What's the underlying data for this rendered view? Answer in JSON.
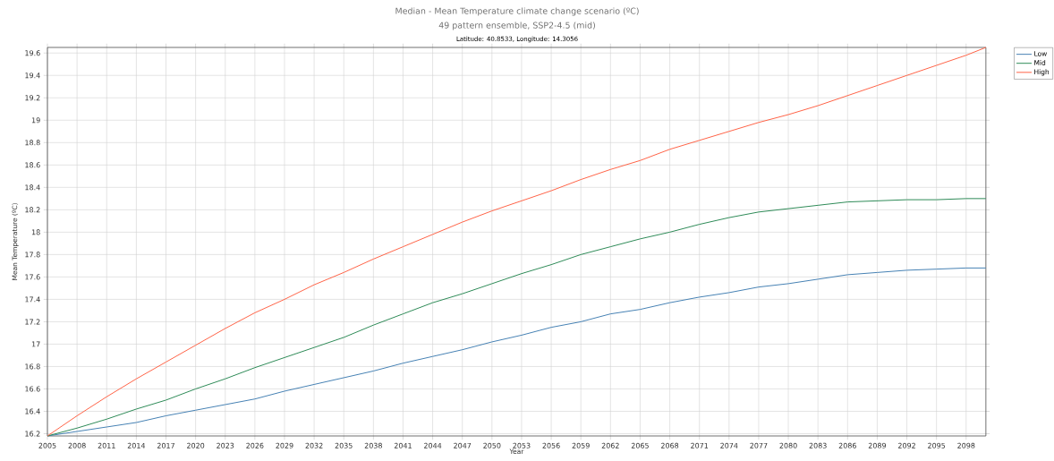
{
  "chart_data": {
    "type": "line",
    "title": "Median - Mean Temperature climate change scenario (ºC)",
    "subtitle": "49 pattern ensemble, SSP2-4.5 (mid)",
    "annotations": [
      "Latitude:  40.8533, Longitude:  14.3056"
    ],
    "xlabel": "Year",
    "ylabel": "Mean Temperature (ºC)",
    "x": [
      2005,
      2008,
      2011,
      2014,
      2017,
      2020,
      2023,
      2026,
      2029,
      2032,
      2035,
      2038,
      2041,
      2044,
      2047,
      2050,
      2053,
      2056,
      2059,
      2062,
      2065,
      2068,
      2071,
      2074,
      2077,
      2080,
      2083,
      2086,
      2089,
      2092,
      2095,
      2098,
      2100
    ],
    "series": [
      {
        "name": "Low",
        "color": "#4682b4",
        "values": [
          16.18,
          16.22,
          16.26,
          16.3,
          16.36,
          16.41,
          16.46,
          16.51,
          16.58,
          16.64,
          16.7,
          16.76,
          16.83,
          16.89,
          16.95,
          17.02,
          17.08,
          17.15,
          17.2,
          17.27,
          17.31,
          17.37,
          17.42,
          17.46,
          17.51,
          17.54,
          17.58,
          17.62,
          17.64,
          17.66,
          17.67,
          17.68,
          17.68
        ]
      },
      {
        "name": "Mid",
        "color": "#2e8b57",
        "values": [
          16.18,
          16.25,
          16.33,
          16.42,
          16.5,
          16.6,
          16.69,
          16.79,
          16.88,
          16.97,
          17.06,
          17.17,
          17.27,
          17.37,
          17.45,
          17.54,
          17.63,
          17.71,
          17.8,
          17.87,
          17.94,
          18.0,
          18.07,
          18.13,
          18.18,
          18.21,
          18.24,
          18.27,
          18.28,
          18.29,
          18.29,
          18.3,
          18.3
        ]
      },
      {
        "name": "High",
        "color": "#ff6347",
        "values": [
          16.18,
          16.36,
          16.53,
          16.69,
          16.84,
          16.99,
          17.14,
          17.28,
          17.4,
          17.53,
          17.64,
          17.76,
          17.87,
          17.98,
          18.09,
          18.19,
          18.28,
          18.37,
          18.47,
          18.56,
          18.64,
          18.74,
          18.82,
          18.9,
          18.98,
          19.05,
          19.13,
          19.22,
          19.31,
          19.4,
          19.49,
          19.58,
          19.65
        ]
      }
    ],
    "xlim": [
      2005,
      2100
    ],
    "ylim": [
      16.18,
      19.65
    ],
    "xticks": [
      2005,
      2008,
      2011,
      2014,
      2017,
      2020,
      2023,
      2026,
      2029,
      2032,
      2035,
      2038,
      2041,
      2044,
      2047,
      2050,
      2053,
      2056,
      2059,
      2062,
      2065,
      2068,
      2071,
      2074,
      2077,
      2080,
      2083,
      2086,
      2089,
      2092,
      2095,
      2098
    ],
    "yticks": [
      16.2,
      16.4,
      16.6,
      16.8,
      17,
      17.2,
      17.4,
      17.6,
      17.8,
      18,
      18.2,
      18.4,
      18.6,
      18.8,
      19,
      19.2,
      19.4,
      19.6
    ],
    "grid": true,
    "legend": "top right",
    "marker": "none",
    "line_style": "solid"
  }
}
